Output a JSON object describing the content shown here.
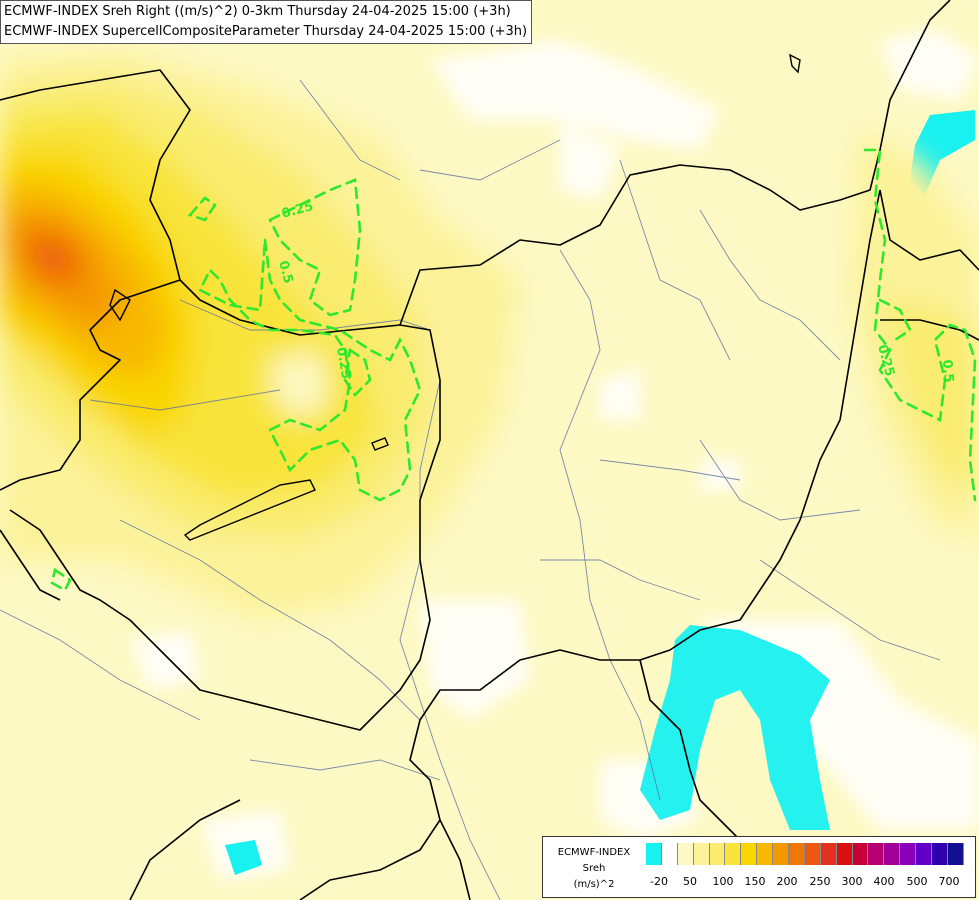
{
  "header": {
    "title_line1": "ECMWF-INDEX Sreh Right ((m/s)^2) 0-3km Thursday 24-04-2025 15:00 (+3h)",
    "title_line2": "ECMWF-INDEX SupercellCompositeParameter Thursday 24-04-2025 15:00 (+3h)"
  },
  "contour_labels": [
    "0.25",
    "0.5",
    "0.25",
    "0.25",
    "0.5"
  ],
  "colors": {
    "background": "#fdf9c4",
    "contour": "#2ee82e",
    "border": "#000000",
    "river": "#5a6ea0"
  },
  "legend": {
    "model": "ECMWF-INDEX",
    "parameter": "Sreh",
    "unit": "(m/s)^2",
    "colors": [
      "#19f0f0",
      "#ffffff",
      "#fdf9c4",
      "#fbf29a",
      "#f9ec6e",
      "#f8e43a",
      "#f9d600",
      "#f8b800",
      "#f49800",
      "#f07800",
      "#ec5810",
      "#e43020",
      "#d81010",
      "#c80038",
      "#b40070",
      "#a00098",
      "#8800b8",
      "#6000c8",
      "#3000b0",
      "#101090"
    ],
    "ticks": [
      "-20",
      "50",
      "100",
      "150",
      "200",
      "250",
      "300",
      "400",
      "500",
      "700"
    ]
  }
}
